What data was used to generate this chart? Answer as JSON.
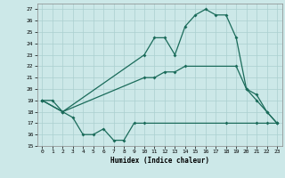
{
  "xlabel": "Humidex (Indice chaleur)",
  "bg_color": "#cce8e8",
  "grid_color": "#aacfcf",
  "line_color": "#1a6b5a",
  "xlim": [
    -0.5,
    23.5
  ],
  "ylim": [
    15,
    27.5
  ],
  "yticks": [
    15,
    16,
    17,
    18,
    19,
    20,
    21,
    22,
    23,
    24,
    25,
    26,
    27
  ],
  "xticks": [
    0,
    1,
    2,
    3,
    4,
    5,
    6,
    7,
    8,
    9,
    10,
    11,
    12,
    13,
    14,
    15,
    16,
    17,
    18,
    19,
    20,
    21,
    22,
    23
  ],
  "line1_x": [
    0,
    1,
    2,
    3,
    4,
    5,
    6,
    7,
    8,
    9,
    10,
    18,
    21,
    22,
    23
  ],
  "line1_y": [
    19,
    19,
    18,
    17.5,
    16,
    16,
    16.5,
    15.5,
    15.5,
    17,
    17,
    17,
    17,
    17,
    17
  ],
  "line2_x": [
    0,
    2,
    10,
    11,
    12,
    13,
    14,
    19,
    20,
    21,
    22,
    23
  ],
  "line2_y": [
    19,
    18,
    21,
    21,
    21.5,
    21.5,
    22,
    22,
    20,
    19,
    18,
    17
  ],
  "line3_x": [
    0,
    2,
    10,
    11,
    12,
    13,
    14,
    15,
    16,
    17,
    18,
    19,
    20,
    21,
    22,
    23
  ],
  "line3_y": [
    19,
    18,
    23,
    24.5,
    24.5,
    23,
    25.5,
    26.5,
    27,
    26.5,
    26.5,
    24.5,
    20,
    19.5,
    18,
    17
  ]
}
